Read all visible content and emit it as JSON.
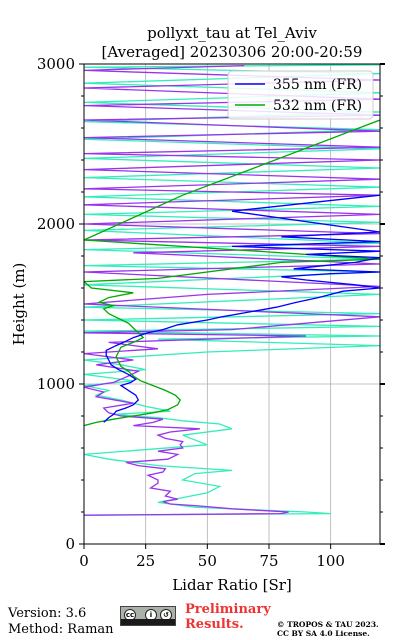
{
  "chart_data": {
    "type": "line",
    "title_line1": "pollyxt_tau at Tel_Aviv",
    "title_line2": "[Averaged] 20230306 20:00-20:59",
    "xlabel": "Lidar Ratio [Sr]",
    "ylabel": "Height (m)",
    "xlim": [
      0,
      120
    ],
    "ylim": [
      0,
      3000
    ],
    "xticks": [
      0,
      25,
      50,
      75,
      100
    ],
    "yticks": [
      0,
      1000,
      2000,
      3000
    ],
    "grid": true,
    "legend_position": "top-right",
    "legend": [
      {
        "label": "355 nm (FR)",
        "color": "#0000ff"
      },
      {
        "label": "532 nm (FR)",
        "color": "#00aa00"
      }
    ],
    "series": [
      {
        "name": "355 nm (FR)",
        "color": "#0000ff",
        "points": [
          [
            8,
            760
          ],
          [
            10,
            790
          ],
          [
            12,
            810
          ],
          [
            13,
            830
          ],
          [
            17,
            850
          ],
          [
            20,
            870
          ],
          [
            22,
            900
          ],
          [
            21,
            930
          ],
          [
            18,
            960
          ],
          [
            15,
            990
          ],
          [
            19,
            1010
          ],
          [
            21,
            1030
          ],
          [
            18,
            1060
          ],
          [
            14,
            1090
          ],
          [
            11,
            1120
          ],
          [
            10,
            1150
          ],
          [
            9,
            1180
          ],
          [
            9,
            1210
          ],
          [
            13,
            1240
          ],
          [
            16,
            1260
          ],
          [
            20,
            1290
          ],
          [
            26,
            1320
          ],
          [
            32,
            1340
          ],
          [
            38,
            1370
          ],
          [
            50,
            1400
          ],
          [
            56,
            1420
          ],
          [
            67,
            1450
          ],
          [
            78,
            1480
          ],
          [
            86,
            1510
          ],
          [
            95,
            1540
          ],
          [
            105,
            1580
          ],
          [
            120,
            1600
          ],
          [
            110,
            1620
          ],
          [
            90,
            1650
          ],
          [
            80,
            1670
          ],
          [
            100,
            1690
          ],
          [
            120,
            1700
          ],
          [
            85,
            1720
          ],
          [
            110,
            1760
          ],
          [
            120,
            1790
          ],
          [
            90,
            1810
          ],
          [
            120,
            1830
          ],
          [
            60,
            1860
          ],
          [
            120,
            1890
          ],
          [
            80,
            1920
          ],
          [
            120,
            1950
          ],
          [
            60,
            2080
          ],
          [
            120,
            2180
          ]
        ]
      },
      {
        "name": "532 nm (FR)",
        "color": "#00aa00",
        "points": [
          [
            0,
            740
          ],
          [
            5,
            760
          ],
          [
            12,
            780
          ],
          [
            20,
            800
          ],
          [
            28,
            820
          ],
          [
            34,
            840
          ],
          [
            38,
            870
          ],
          [
            39,
            900
          ],
          [
            37,
            930
          ],
          [
            33,
            960
          ],
          [
            28,
            990
          ],
          [
            23,
            1020
          ],
          [
            20,
            1050
          ],
          [
            18,
            1080
          ],
          [
            15,
            1110
          ],
          [
            14,
            1140
          ],
          [
            13,
            1170
          ],
          [
            14,
            1200
          ],
          [
            15,
            1230
          ],
          [
            20,
            1260
          ],
          [
            24,
            1290
          ],
          [
            22,
            1320
          ],
          [
            20,
            1350
          ],
          [
            18,
            1380
          ],
          [
            14,
            1410
          ],
          [
            10,
            1440
          ],
          [
            8,
            1470
          ],
          [
            12,
            1490
          ],
          [
            6,
            1510
          ],
          [
            10,
            1540
          ],
          [
            20,
            1570
          ],
          [
            3,
            1600
          ],
          [
            0,
            1640
          ],
          [
            30,
            1660
          ],
          [
            80,
            1760
          ],
          [
            120,
            1780
          ],
          [
            0,
            1900
          ],
          [
            40,
            2180
          ],
          [
            120,
            2650
          ]
        ]
      },
      {
        "name": "",
        "color": "#9933ee",
        "points": [
          [
            0,
            180
          ],
          [
            80,
            190
          ],
          [
            83,
            200
          ],
          [
            60,
            220
          ],
          [
            45,
            240
          ],
          [
            35,
            250
          ],
          [
            32,
            265
          ],
          [
            38,
            280
          ],
          [
            33,
            300
          ],
          [
            35,
            330
          ],
          [
            27,
            350
          ],
          [
            30,
            380
          ],
          [
            30,
            400
          ],
          [
            26,
            430
          ],
          [
            32,
            450
          ],
          [
            33,
            470
          ],
          [
            22,
            490
          ],
          [
            17,
            510
          ],
          [
            34,
            530
          ],
          [
            38,
            560
          ],
          [
            30,
            580
          ],
          [
            40,
            600
          ],
          [
            39,
            620
          ],
          [
            40,
            640
          ],
          [
            33,
            660
          ],
          [
            30,
            680
          ],
          [
            35,
            700
          ],
          [
            47,
            720
          ],
          [
            20,
            740
          ],
          [
            28,
            760
          ],
          [
            32,
            780
          ],
          [
            15,
            800
          ],
          [
            10,
            820
          ],
          [
            8,
            850
          ],
          [
            20,
            880
          ],
          [
            5,
            920
          ],
          [
            8,
            950
          ],
          [
            0,
            980
          ],
          [
            12,
            1010
          ],
          [
            18,
            1050
          ],
          [
            22,
            1080
          ],
          [
            5,
            1120
          ],
          [
            20,
            1150
          ],
          [
            0,
            1190
          ],
          [
            30,
            1220
          ],
          [
            10,
            1260
          ],
          [
            90,
            1300
          ],
          [
            0,
            1320
          ],
          [
            60,
            1340
          ],
          [
            120,
            1420
          ],
          [
            0,
            1500
          ],
          [
            50,
            1560
          ],
          [
            120,
            1610
          ],
          [
            0,
            1700
          ],
          [
            120,
            1750
          ],
          [
            20,
            1820
          ],
          [
            120,
            1860
          ],
          [
            0,
            1900
          ],
          [
            120,
            1940
          ],
          [
            0,
            2000
          ],
          [
            120,
            2060
          ],
          [
            0,
            2120
          ],
          [
            120,
            2180
          ],
          [
            0,
            2220
          ],
          [
            120,
            2280
          ],
          [
            0,
            2340
          ],
          [
            120,
            2400
          ],
          [
            0,
            2440
          ],
          [
            120,
            2480
          ],
          [
            0,
            2540
          ],
          [
            120,
            2580
          ],
          [
            0,
            2650
          ],
          [
            120,
            2680
          ],
          [
            0,
            2740
          ],
          [
            120,
            2780
          ],
          [
            0,
            2850
          ],
          [
            120,
            2900
          ],
          [
            0,
            2960
          ],
          [
            65,
            2990
          ]
        ]
      },
      {
        "name": "",
        "color": "#33eebb",
        "points": [
          [
            0,
            180
          ],
          [
            100,
            190
          ],
          [
            90,
            200
          ],
          [
            45,
            230
          ],
          [
            30,
            260
          ],
          [
            40,
            290
          ],
          [
            50,
            320
          ],
          [
            55,
            360
          ],
          [
            40,
            400
          ],
          [
            45,
            440
          ],
          [
            60,
            460
          ],
          [
            30,
            490
          ],
          [
            10,
            530
          ],
          [
            0,
            560
          ],
          [
            50,
            620
          ],
          [
            40,
            680
          ],
          [
            60,
            720
          ],
          [
            55,
            750
          ],
          [
            40,
            770
          ],
          [
            30,
            790
          ],
          [
            12,
            810
          ],
          [
            35,
            830
          ],
          [
            25,
            860
          ],
          [
            15,
            900
          ],
          [
            5,
            930
          ],
          [
            10,
            960
          ],
          [
            0,
            990
          ],
          [
            20,
            1020
          ],
          [
            0,
            1060
          ],
          [
            25,
            1090
          ],
          [
            15,
            1120
          ],
          [
            0,
            1150
          ],
          [
            50,
            1200
          ],
          [
            120,
            1240
          ],
          [
            30,
            1280
          ],
          [
            120,
            1300
          ],
          [
            0,
            1330
          ],
          [
            120,
            1360
          ],
          [
            0,
            1400
          ],
          [
            120,
            1440
          ],
          [
            0,
            1480
          ],
          [
            120,
            1560
          ],
          [
            0,
            1620
          ],
          [
            120,
            1700
          ],
          [
            0,
            1740
          ],
          [
            120,
            1780
          ],
          [
            0,
            1840
          ],
          [
            120,
            1880
          ],
          [
            0,
            1960
          ],
          [
            120,
            2010
          ],
          [
            0,
            2060
          ],
          [
            120,
            2110
          ],
          [
            0,
            2170
          ],
          [
            120,
            2230
          ],
          [
            0,
            2290
          ],
          [
            120,
            2350
          ],
          [
            0,
            2410
          ],
          [
            120,
            2470
          ],
          [
            0,
            2530
          ],
          [
            120,
            2590
          ],
          [
            0,
            2640
          ],
          [
            120,
            2700
          ],
          [
            0,
            2760
          ],
          [
            120,
            2820
          ],
          [
            0,
            2880
          ],
          [
            120,
            2940
          ],
          [
            0,
            2980
          ],
          [
            120,
            2995
          ]
        ]
      }
    ]
  },
  "footer": {
    "version": "Version: 3.6",
    "method": "Method: Raman",
    "preliminary_line1": "Preliminary",
    "preliminary_line2": "Results.",
    "copyright_line1": "© TROPOS & TAU 2023.",
    "copyright_line2": "CC BY SA 4.0 License."
  },
  "cc_badge": {
    "label": "cc-by-sa-badge",
    "glyph_cc": "cc",
    "glyph_by": "i",
    "glyph_sa": "↺"
  }
}
